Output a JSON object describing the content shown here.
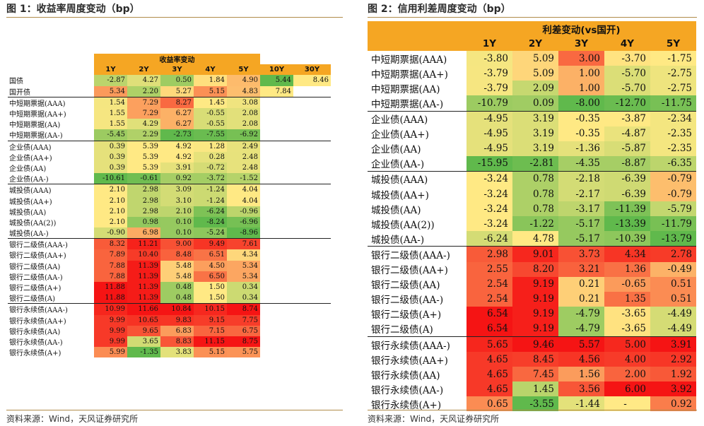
{
  "left": {
    "title": "图 1：收益率周度变动（bp）",
    "header_group": "收益率变动",
    "columns": [
      "1Y",
      "2Y",
      "3Y",
      "4Y",
      "5Y",
      "10Y",
      "30Y"
    ],
    "rows": [
      {
        "label": "国债",
        "values": [
          -2.87,
          4.27,
          0.5,
          1.84,
          4.9,
          5.44,
          8.46
        ]
      },
      {
        "label": "国开债",
        "values": [
          5.34,
          2.2,
          5.27,
          5.15,
          4.83,
          7.84,
          null
        ]
      },
      {
        "label": "中短期票据(AAA)",
        "values": [
          1.54,
          7.29,
          8.27,
          1.45,
          3.08
        ],
        "sep": true
      },
      {
        "label": "中短期票据(AA+)",
        "values": [
          1.55,
          7.29,
          6.27,
          -0.55,
          2.08
        ]
      },
      {
        "label": "中短期票据(AA)",
        "values": [
          1.55,
          4.29,
          6.27,
          -0.55,
          2.08
        ]
      },
      {
        "label": "中短期票据(AA-)",
        "values": [
          -5.45,
          2.29,
          -2.73,
          -7.55,
          -6.92
        ]
      },
      {
        "label": "企业债(AAA)",
        "values": [
          0.39,
          5.39,
          4.92,
          1.28,
          2.49
        ],
        "sep": true
      },
      {
        "label": "企业债(AA+)",
        "values": [
          0.39,
          5.39,
          4.92,
          0.28,
          2.48
        ]
      },
      {
        "label": "企业债(AA)",
        "values": [
          0.39,
          5.39,
          3.91,
          -0.72,
          2.48
        ]
      },
      {
        "label": "企业债(AA-)",
        "values": [
          -10.61,
          -0.61,
          0.92,
          -3.72,
          -1.52
        ]
      },
      {
        "label": "城投债(AAA)",
        "values": [
          2.1,
          2.98,
          3.09,
          -1.24,
          4.04
        ],
        "sep": true
      },
      {
        "label": "城投债(AA+)",
        "values": [
          2.1,
          2.98,
          3.1,
          -1.24,
          4.04
        ]
      },
      {
        "label": "城投债(AA)",
        "values": [
          2.1,
          2.98,
          2.1,
          -6.24,
          -0.96
        ]
      },
      {
        "label": "城投债(AA(2))",
        "values": [
          2.1,
          0.98,
          0.1,
          -8.24,
          -6.96
        ]
      },
      {
        "label": "城投债(AA-)",
        "values": [
          -0.9,
          6.98,
          0.1,
          -5.24,
          -8.96
        ]
      },
      {
        "label": "银行二级债(AAA-)",
        "values": [
          8.32,
          11.21,
          9.0,
          9.49,
          7.61
        ],
        "sep": true
      },
      {
        "label": "银行二级债(AA+)",
        "values": [
          7.89,
          10.4,
          8.48,
          6.51,
          4.34
        ]
      },
      {
        "label": "银行二级债(AA)",
        "values": [
          7.88,
          11.39,
          5.48,
          4.5,
          5.34
        ]
      },
      {
        "label": "银行二级债(AA-)",
        "values": [
          7.88,
          11.39,
          5.48,
          6.5,
          5.34
        ]
      },
      {
        "label": "银行二级债(A+)",
        "values": [
          11.88,
          11.39,
          0.48,
          1.5,
          0.34
        ]
      },
      {
        "label": "银行二级债(A)",
        "values": [
          11.88,
          11.39,
          0.48,
          1.5,
          0.34
        ]
      },
      {
        "label": "银行永续债(AAA-)",
        "values": [
          10.99,
          11.66,
          10.84,
          10.15,
          8.74
        ],
        "sep": true
      },
      {
        "label": "银行永续债(AA+)",
        "values": [
          9.99,
          10.65,
          9.83,
          9.15,
          7.75
        ]
      },
      {
        "label": "银行永续债(AA)",
        "values": [
          9.99,
          9.65,
          6.83,
          7.15,
          6.75
        ]
      },
      {
        "label": "银行永续债(AA-)",
        "values": [
          9.99,
          3.65,
          8.83,
          11.15,
          8.75
        ]
      },
      {
        "label": "银行永续债(A+)",
        "values": [
          5.99,
          -1.35,
          3.83,
          5.15,
          5.75
        ]
      }
    ],
    "source": "资料来源：Wind，天风证券研究所"
  },
  "right": {
    "title": "图 2：信用利差周度变动（bp）",
    "header_group": "利差变动(vs国开)",
    "columns": [
      "1Y",
      "2Y",
      "3Y",
      "4Y",
      "5Y"
    ],
    "rows": [
      {
        "label": "中短期票据(AAA)",
        "values": [
          -3.8,
          5.09,
          3.0,
          -3.7,
          -1.75
        ]
      },
      {
        "label": "中短期票据(AA+)",
        "values": [
          -3.79,
          5.09,
          1.0,
          -5.7,
          -2.75
        ]
      },
      {
        "label": "中短期票据(AA)",
        "values": [
          -3.79,
          2.09,
          1.0,
          -5.7,
          -2.75
        ]
      },
      {
        "label": "中短期票据(AA-)",
        "values": [
          -10.79,
          0.09,
          -8.0,
          -12.7,
          -11.75
        ]
      },
      {
        "label": "企业债(AAA)",
        "values": [
          -4.95,
          3.19,
          -0.35,
          -3.87,
          -2.34
        ],
        "sep": true
      },
      {
        "label": "企业债(AA+)",
        "values": [
          -4.95,
          3.19,
          -0.35,
          -4.87,
          -2.35
        ]
      },
      {
        "label": "企业债(AA)",
        "values": [
          -4.95,
          3.19,
          -1.36,
          -5.87,
          -2.35
        ]
      },
      {
        "label": "企业债(AA-)",
        "values": [
          -15.95,
          -2.81,
          -4.35,
          -8.87,
          -6.35
        ]
      },
      {
        "label": "城投债(AAA)",
        "values": [
          -3.24,
          0.78,
          -2.18,
          -6.39,
          -0.79
        ],
        "sep": true
      },
      {
        "label": "城投债(AA+)",
        "values": [
          -3.24,
          0.78,
          -2.17,
          -6.39,
          -0.79
        ]
      },
      {
        "label": "城投债(AA)",
        "values": [
          -3.24,
          0.78,
          -3.17,
          -11.39,
          -5.79
        ]
      },
      {
        "label": "城投债(AA(2))",
        "values": [
          -3.24,
          -1.22,
          -5.17,
          -13.39,
          -11.79
        ]
      },
      {
        "label": "城投债(AA-)",
        "values": [
          -6.24,
          4.78,
          -5.17,
          -10.39,
          -13.79
        ]
      },
      {
        "label": "银行二级债(AAA-)",
        "values": [
          2.98,
          9.01,
          3.73,
          4.34,
          2.78
        ],
        "sep": true
      },
      {
        "label": "银行二级债(AA+)",
        "values": [
          2.55,
          8.2,
          3.21,
          1.36,
          -0.49
        ]
      },
      {
        "label": "银行二级债(AA)",
        "values": [
          2.54,
          9.19,
          0.21,
          -0.65,
          0.51
        ]
      },
      {
        "label": "银行二级债(AA-)",
        "values": [
          2.54,
          9.19,
          0.21,
          1.35,
          0.51
        ]
      },
      {
        "label": "银行二级债(A+)",
        "values": [
          6.54,
          9.19,
          -4.79,
          -3.65,
          -4.49
        ]
      },
      {
        "label": "银行二级债(A)",
        "values": [
          6.54,
          9.19,
          -4.79,
          -3.65,
          -4.49
        ]
      },
      {
        "label": "银行永续债(AAA-)",
        "values": [
          5.65,
          9.46,
          5.57,
          5.0,
          3.91
        ],
        "sep": true
      },
      {
        "label": "银行永续债(AA+)",
        "values": [
          4.65,
          8.45,
          4.56,
          4.0,
          2.92
        ]
      },
      {
        "label": "银行永续债(AA)",
        "values": [
          4.65,
          7.45,
          1.56,
          2.0,
          1.92
        ]
      },
      {
        "label": "银行永续债(AA-)",
        "values": [
          4.65,
          1.45,
          3.56,
          6.0,
          3.92
        ]
      },
      {
        "label": "银行永续债(A+)",
        "values": [
          0.65,
          -3.55,
          -1.44,
          "-",
          0.92
        ]
      }
    ],
    "source": "资料来源：Wind，天风证券研究所"
  }
}
